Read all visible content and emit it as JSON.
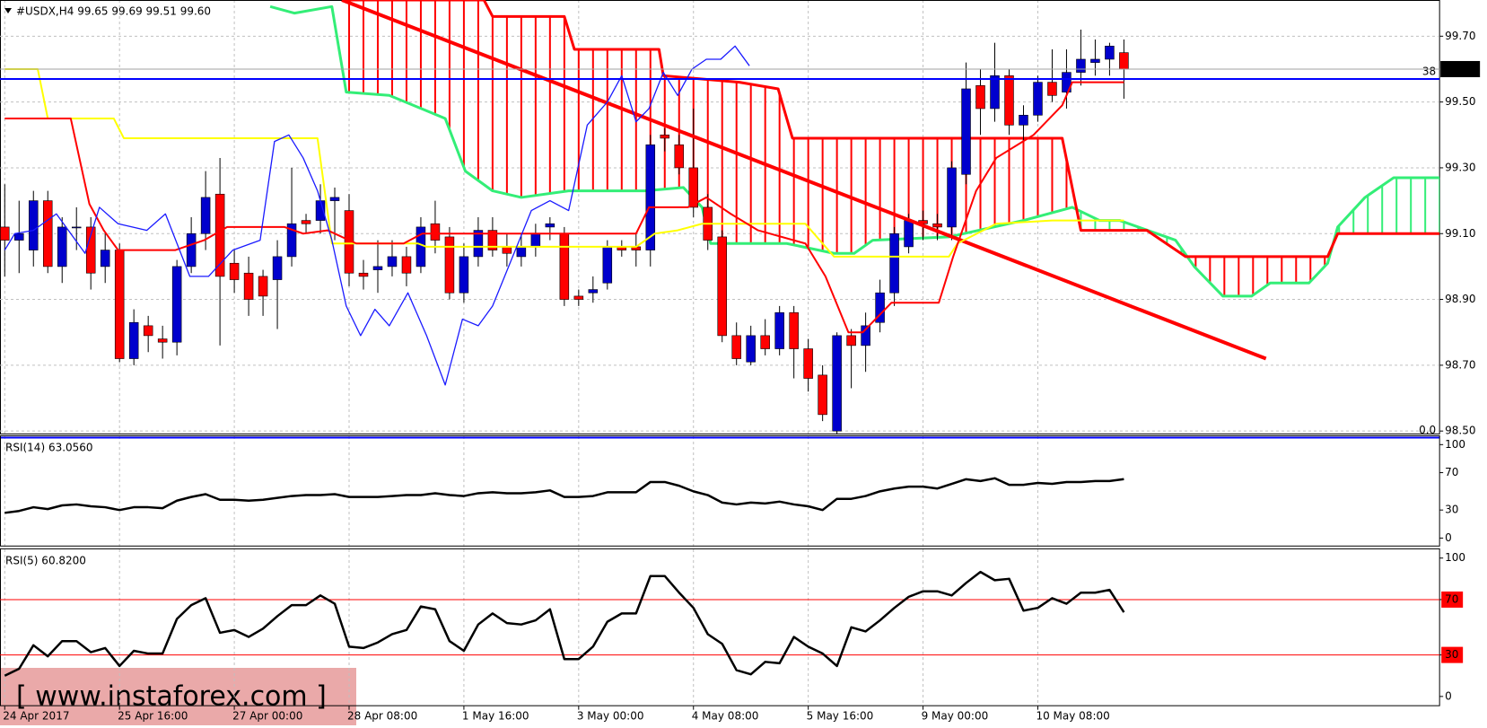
{
  "chart_data": [
    {
      "type": "candlestick",
      "header": "#USDX,H4 99.65 99.69 99.51 99.60",
      "watermark": "[ www.instaforex.com ]",
      "xlim": [
        -0.33,
        100
      ],
      "xticks": [
        {
          "value": 0,
          "label": "24 Apr 2017"
        },
        {
          "value": 8,
          "label": "25 Apr 16:00"
        },
        {
          "value": 16,
          "label": "27 Apr 00:00"
        },
        {
          "value": 24,
          "label": "28 Apr 08:00"
        },
        {
          "value": 32,
          "label": "1 May 16:00"
        },
        {
          "value": 40,
          "label": "3 May 00:00"
        },
        {
          "value": 48,
          "label": "4 May 08:00"
        },
        {
          "value": 56,
          "label": "5 May 16:00"
        },
        {
          "value": 64,
          "label": "9 May 00:00"
        },
        {
          "value": 72,
          "label": "10 May 08:00"
        }
      ],
      "ylim": [
        98.49,
        99.81
      ],
      "yticks": [
        {
          "value": 98.5,
          "label": "98.50"
        },
        {
          "value": 98.7,
          "label": "98.70"
        },
        {
          "value": 98.9,
          "label": "98.90"
        },
        {
          "value": 99.1,
          "label": "99.10"
        },
        {
          "value": 99.3,
          "label": "99.30"
        },
        {
          "value": 99.5,
          "label": "99.50"
        },
        {
          "value": 99.7,
          "label": "99.70"
        }
      ],
      "grid": true,
      "up_color": "#0000cd",
      "down_color": "#ff0000",
      "open": [
        99.12,
        99.08,
        99.05,
        99.2,
        99.0,
        99.12,
        99.12,
        99.0,
        99.05,
        98.72,
        98.82,
        98.78,
        98.77,
        99.0,
        99.1,
        99.22,
        99.01,
        98.98,
        98.97,
        98.96,
        99.03,
        99.14,
        99.14,
        99.2,
        99.17,
        98.98,
        98.99,
        99.0,
        99.03,
        99.0,
        99.13,
        99.09,
        98.92,
        99.03,
        99.11,
        99.06,
        99.03,
        99.06,
        99.12,
        99.1,
        98.91,
        98.92,
        98.95,
        99.06,
        99.06,
        99.05,
        99.4,
        99.37,
        99.3,
        99.18,
        99.09,
        98.79,
        98.71,
        98.79,
        98.75,
        98.86,
        98.75,
        98.67,
        98.5,
        98.79,
        98.76,
        98.83,
        98.92,
        99.06,
        99.14,
        99.13,
        99.12,
        99.28,
        99.55,
        99.48,
        99.58,
        99.43,
        99.46,
        99.56,
        99.53,
        99.59,
        99.62,
        99.63,
        99.65
      ],
      "high": [
        99.25,
        99.2,
        99.23,
        99.23,
        99.15,
        99.18,
        99.15,
        99.1,
        99.07,
        98.87,
        98.85,
        98.82,
        99.02,
        99.15,
        99.29,
        99.33,
        99.05,
        99.03,
        98.99,
        99.08,
        99.3,
        99.16,
        99.25,
        99.24,
        99.22,
        99.02,
        99.08,
        99.08,
        99.06,
        99.15,
        99.2,
        99.12,
        99.07,
        99.15,
        99.15,
        99.1,
        99.1,
        99.13,
        99.15,
        99.12,
        98.93,
        98.97,
        99.08,
        99.08,
        99.1,
        99.4,
        99.42,
        99.4,
        99.48,
        99.22,
        99.11,
        98.83,
        98.82,
        98.84,
        98.88,
        98.88,
        98.78,
        98.7,
        98.8,
        98.81,
        98.86,
        98.96,
        99.12,
        99.16,
        99.17,
        99.16,
        99.32,
        99.62,
        99.6,
        99.68,
        99.6,
        99.49,
        99.58,
        99.66,
        99.66,
        99.72,
        99.69,
        99.68,
        99.69
      ],
      "low": [
        98.97,
        98.98,
        99.0,
        98.98,
        98.95,
        99.05,
        98.93,
        98.95,
        98.71,
        98.7,
        98.74,
        98.72,
        98.73,
        98.98,
        99.05,
        98.76,
        98.92,
        98.85,
        98.85,
        98.81,
        99.0,
        99.1,
        99.1,
        99.08,
        98.94,
        98.93,
        98.92,
        98.97,
        98.94,
        98.98,
        99.04,
        98.9,
        98.89,
        99.0,
        99.03,
        99.0,
        99.0,
        99.03,
        99.08,
        98.88,
        98.88,
        98.89,
        98.93,
        99.03,
        99.0,
        99.0,
        99.35,
        99.28,
        99.15,
        99.05,
        98.77,
        98.7,
        98.7,
        98.73,
        98.73,
        98.66,
        98.62,
        98.53,
        98.49,
        98.63,
        98.68,
        98.8,
        98.88,
        99.04,
        99.08,
        99.08,
        99.08,
        99.25,
        99.4,
        99.44,
        99.4,
        99.38,
        99.44,
        99.5,
        99.48,
        99.55,
        99.58,
        99.58,
        99.51
      ],
      "close": [
        99.08,
        99.1,
        99.2,
        99.0,
        99.12,
        99.12,
        98.98,
        99.05,
        98.72,
        98.83,
        98.79,
        98.77,
        99.0,
        99.1,
        99.21,
        98.97,
        98.96,
        98.9,
        98.91,
        99.03,
        99.13,
        99.13,
        99.2,
        99.21,
        98.98,
        98.97,
        99.0,
        99.03,
        98.98,
        99.12,
        99.08,
        98.92,
        99.03,
        99.11,
        99.05,
        99.04,
        99.06,
        99.1,
        99.13,
        98.9,
        98.9,
        98.93,
        99.06,
        99.05,
        99.05,
        99.37,
        99.39,
        99.3,
        99.18,
        99.08,
        98.79,
        98.72,
        98.79,
        98.75,
        98.86,
        98.75,
        98.66,
        98.55,
        98.79,
        98.76,
        98.82,
        98.92,
        99.1,
        99.14,
        99.13,
        99.12,
        99.3,
        99.54,
        99.48,
        99.58,
        99.43,
        99.46,
        99.56,
        99.52,
        99.59,
        99.63,
        99.63,
        99.67,
        99.6
      ],
      "cloud": {
        "span_a": {
          "color": "#33ee77",
          "width": 3,
          "x": [
            18.5,
            20.2,
            22.8,
            23.8,
            26.8,
            30.7,
            32.1,
            34,
            36,
            39.3,
            44.6,
            47.3,
            48.6,
            49.2,
            54.5,
            57.8,
            59.2,
            60.5,
            65.8,
            71,
            74.4,
            76.3,
            77.7,
            81.6,
            82.9,
            84.9,
            86.9,
            88.2,
            90.9,
            92.2,
            92.9,
            94.8,
            96.8,
            100
          ],
          "values": [
            99.79,
            99.77,
            99.79,
            99.53,
            99.52,
            99.45,
            99.29,
            99.23,
            99.21,
            99.23,
            99.23,
            99.24,
            99.18,
            99.07,
            99.07,
            99.04,
            99.04,
            99.08,
            99.09,
            99.14,
            99.18,
            99.14,
            99.14,
            99.08,
            99.0,
            98.91,
            98.91,
            98.95,
            98.95,
            99.01,
            99.12,
            99.21,
            99.27,
            99.27
          ]
        },
        "span_b": {
          "color": "#ff0000",
          "width": 3,
          "x": [
            23.5,
            33.4,
            34,
            39,
            39.7,
            45.6,
            45.9,
            51.2,
            53.9,
            54.9,
            73.7,
            75,
            79.6,
            82.3,
            92.2,
            92.9,
            100
          ],
          "values": [
            99.81,
            99.81,
            99.76,
            99.76,
            99.66,
            99.66,
            99.58,
            99.56,
            99.54,
            99.39,
            99.39,
            99.11,
            99.11,
            99.03,
            99.03,
            99.1,
            99.1
          ]
        }
      },
      "lines": [
        {
          "color": "#ff0000",
          "width": 4,
          "x": [
            23.5,
            87.9
          ],
          "values": [
            99.81,
            98.72
          ]
        },
        {
          "color": "#ffff00",
          "width": 2,
          "x": [
            0,
            2.3,
            3,
            7.6,
            8.3,
            21.8,
            22.8,
            28.8,
            29.4,
            44,
            45.3,
            46.9,
            48.6,
            55.8,
            57.8,
            65.8,
            66.4,
            69.1,
            73,
            78
          ],
          "values": [
            99.6,
            99.6,
            99.45,
            99.45,
            99.39,
            99.39,
            99.07,
            99.07,
            99.06,
            99.06,
            99.1,
            99.11,
            99.13,
            99.13,
            99.03,
            99.03,
            99.07,
            99.13,
            99.14,
            99.14
          ]
        },
        {
          "color": "#ff0000",
          "width": 2,
          "x": [
            0,
            4.6,
            5.9,
            6.9,
            7.9,
            11.9,
            13.9,
            15.5,
            19.5,
            20.8,
            22.5,
            24.5,
            27.8,
            29.1,
            38.7,
            44,
            44.9,
            47.6,
            48.9,
            50.6,
            52.5,
            55.8,
            57.2,
            58.8,
            59.8,
            61.8,
            65.1,
            66.1,
            67.7,
            69.1,
            71.7,
            73.7,
            74.4,
            78
          ],
          "values": [
            99.45,
            99.45,
            99.19,
            99.11,
            99.05,
            99.05,
            99.08,
            99.12,
            99.12,
            99.1,
            99.11,
            99.07,
            99.07,
            99.1,
            99.1,
            99.1,
            99.18,
            99.18,
            99.21,
            99.16,
            99.11,
            99.07,
            98.97,
            98.8,
            98.8,
            98.89,
            98.89,
            99.03,
            99.23,
            99.33,
            99.4,
            99.49,
            99.56,
            99.56
          ]
        },
        {
          "color": "#1a1aff",
          "width": 1.3,
          "x": [
            0,
            0.7,
            2,
            3.6,
            5.6,
            6.6,
            7.9,
            9.9,
            11.2,
            12.9,
            14.2,
            15.9,
            17.8,
            18.8,
            19.8,
            20.8,
            21.8,
            22.8,
            23.8,
            24.8,
            25.8,
            26.8,
            28.1,
            29.4,
            30.7,
            31.9,
            33,
            34,
            35.4,
            36.7,
            38,
            39.3,
            40.6,
            42,
            43,
            44,
            44.9,
            45.9,
            46.9,
            47.9,
            48.9,
            49.9,
            50.9,
            51.9
          ],
          "values": [
            99.05,
            99.1,
            99.11,
            99.16,
            99.04,
            99.18,
            99.13,
            99.11,
            99.16,
            98.97,
            98.97,
            99.05,
            99.08,
            99.38,
            99.4,
            99.33,
            99.23,
            99.08,
            98.88,
            98.79,
            98.87,
            98.82,
            98.92,
            98.79,
            98.64,
            98.84,
            98.82,
            98.88,
            99.03,
            99.17,
            99.2,
            99.17,
            99.43,
            99.5,
            99.58,
            99.44,
            99.48,
            99.59,
            99.52,
            99.6,
            99.63,
            99.63,
            99.67,
            99.61
          ]
        }
      ],
      "fib_color": "#0000ff",
      "fib_levels": [
        {
          "value": 99.57,
          "label": "38"
        },
        {
          "value": 98.48,
          "label": "0.0"
        }
      ],
      "last_price": {
        "value": 99.6,
        "label": "99.60"
      }
    },
    {
      "type": "line",
      "title": "RSI(14) 63.0560",
      "color": "#000000",
      "xlim": [
        -0.33,
        100
      ],
      "ylim": [
        -9,
        110
      ],
      "yticks": [
        0,
        30,
        70,
        100
      ],
      "grid": false,
      "values": [
        27,
        29,
        33,
        31,
        35,
        36,
        34,
        33,
        30,
        33,
        33,
        32,
        40,
        44,
        47,
        41,
        41,
        40,
        41,
        43,
        45,
        46,
        46,
        47,
        44,
        44,
        44,
        45,
        46,
        46,
        48,
        46,
        45,
        48,
        49,
        48,
        48,
        49,
        51,
        44,
        44,
        45,
        49,
        49,
        49,
        60,
        60,
        56,
        50,
        46,
        38,
        36,
        38,
        37,
        39,
        36,
        34,
        30,
        42,
        42,
        45,
        50,
        53,
        55,
        55,
        53,
        58,
        63,
        61,
        64,
        57,
        57,
        59,
        58,
        60,
        60,
        61,
        61,
        63.056
      ]
    },
    {
      "type": "line",
      "title": "RSI(5) 60.8200",
      "color": "#000000",
      "xlim": [
        -0.33,
        100
      ],
      "ylim": [
        -7,
        107
      ],
      "yticks": [
        0,
        30,
        70,
        100
      ],
      "grid": false,
      "levels": [
        70,
        30
      ],
      "levels_color": "#ff0000",
      "values": [
        15,
        20,
        37,
        29,
        40,
        40,
        32,
        35,
        22,
        33,
        31,
        31,
        56,
        66,
        71,
        46,
        48,
        43,
        49,
        58,
        66,
        66,
        73,
        67,
        36,
        35,
        39,
        45,
        48,
        65,
        63,
        40,
        33,
        52,
        60,
        53,
        52,
        55,
        63,
        27,
        27,
        36,
        54,
        60,
        60,
        87,
        87,
        75,
        64,
        45,
        38,
        19,
        16,
        25,
        24,
        43,
        36,
        31,
        22,
        50,
        47,
        55,
        64,
        72,
        76,
        76,
        73,
        82,
        90,
        84,
        85,
        62,
        64,
        71,
        67,
        75,
        75,
        77,
        60.82
      ]
    }
  ]
}
